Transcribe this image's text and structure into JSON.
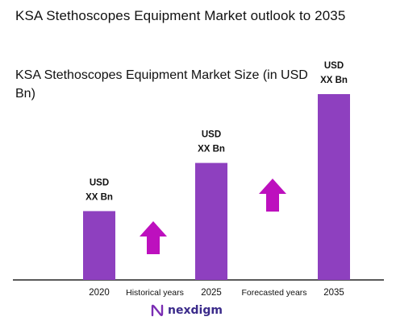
{
  "title": "KSA Stethoscopes Equipment Market outlook to 2035",
  "colors": {
    "bar": "#8E40BF",
    "arrow": "#BD10BE",
    "axis": "#222222",
    "text": "#111111"
  },
  "logo": {
    "text": "nexdigm",
    "icon": "nexdigm-logo-icon"
  },
  "chart_data": {
    "type": "bar",
    "title": "KSA Stethoscopes Equipment Market Size (in USD Bn)",
    "categories": [
      "2020",
      "2025",
      "2035"
    ],
    "values": [
      1.0,
      1.7,
      2.7
    ],
    "value_labels": [
      [
        "USD",
        "XX Bn"
      ],
      [
        "USD",
        "XX Bn"
      ],
      [
        "USD",
        "XX Bn"
      ]
    ],
    "period_labels": [
      "Historical years",
      "Forecasted years"
    ],
    "ylim": [
      0,
      2.7
    ],
    "grid": false,
    "legend": "none"
  }
}
